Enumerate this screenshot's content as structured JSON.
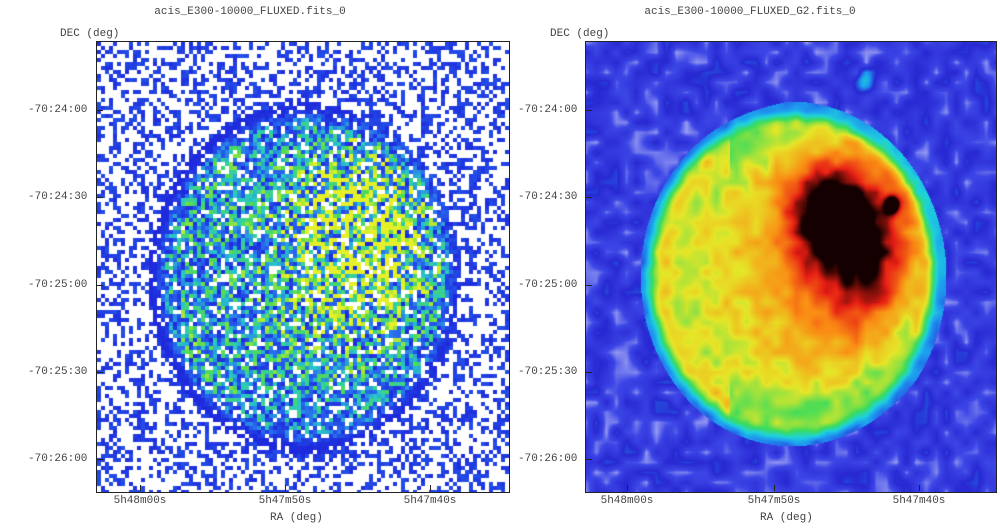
{
  "panels": [
    {
      "title": "acis_E300-10000_FLUXED.fits_0",
      "ylabel": "DEC (deg)",
      "xlabel": "RA (deg)",
      "yticks": [
        "-70:24:00",
        "-70:24:30",
        "-70:25:00",
        "-70:25:30",
        "-70:26:00"
      ],
      "xticks": [
        "5h48m00s",
        "5h47m50s",
        "5h47m40s"
      ],
      "render": "raw-counts",
      "colormap": "white-blue-green-yellow"
    },
    {
      "title": "acis_E300-10000_FLUXED_G2.fits_0",
      "ylabel": "DEC (deg)",
      "xlabel": "RA (deg)",
      "yticks": [
        "-70:24:00",
        "-70:24:30",
        "-70:25:00",
        "-70:25:30",
        "-70:26:00"
      ],
      "xticks": [
        "5h48m00s",
        "5h47m50s",
        "5h47m40s"
      ],
      "render": "gaussian-smoothed",
      "colormap": "blue-cyan-green-yellow-red-black"
    }
  ],
  "colors": {
    "frame": "#222222",
    "text": "#444444",
    "background": "#ffffff"
  }
}
